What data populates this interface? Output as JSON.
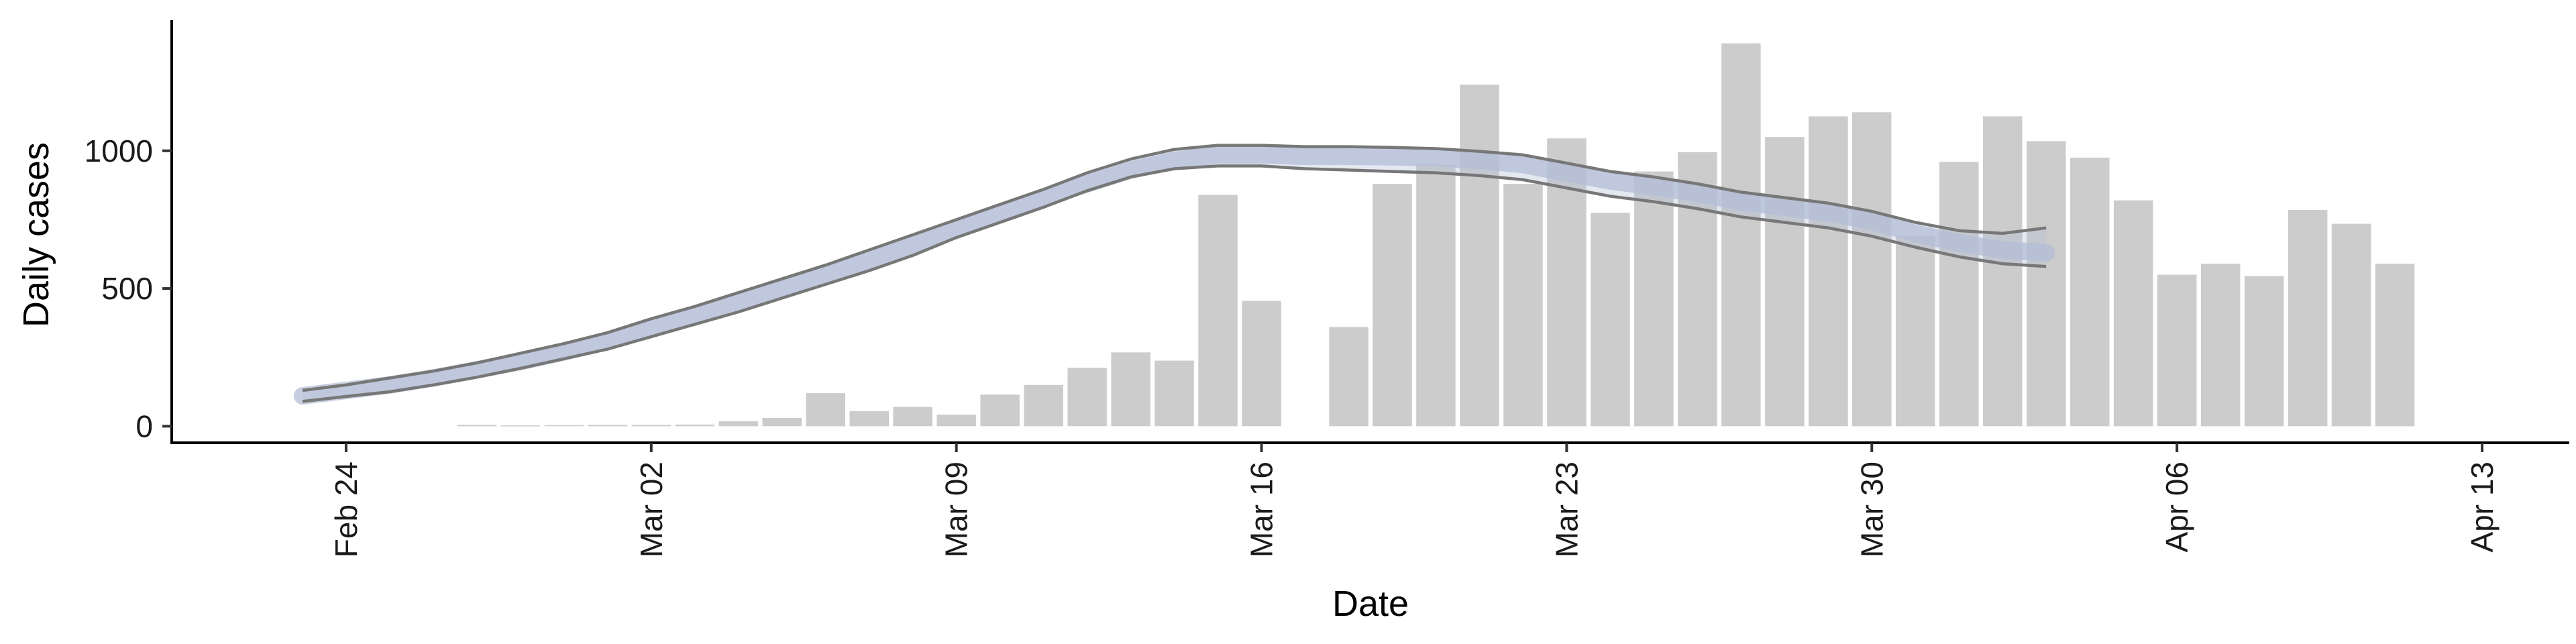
{
  "chart_data": {
    "type": "bar",
    "xlabel": "Date",
    "ylabel": "Daily cases",
    "x_axis_type": "date",
    "xlim": [
      "2020-02-20",
      "2020-04-15"
    ],
    "ylim": [
      -60,
      1450
    ],
    "x_ticks": [
      {
        "date": "2020-02-24",
        "label": "Feb 24"
      },
      {
        "date": "2020-03-02",
        "label": "Mar 02"
      },
      {
        "date": "2020-03-09",
        "label": "Mar 09"
      },
      {
        "date": "2020-03-16",
        "label": "Mar 16"
      },
      {
        "date": "2020-03-23",
        "label": "Mar 23"
      },
      {
        "date": "2020-03-30",
        "label": "Mar 30"
      },
      {
        "date": "2020-04-06",
        "label": "Apr 06"
      },
      {
        "date": "2020-04-13",
        "label": "Apr 13"
      }
    ],
    "y_ticks": [
      0,
      500,
      1000
    ],
    "grid": false,
    "bar_color": "#cccccc",
    "band_color": "#b3bdd6",
    "line_color": "#777777",
    "series": [
      {
        "type": "bar",
        "dates": [
          "2020-02-27",
          "2020-02-28",
          "2020-02-29",
          "2020-03-01",
          "2020-03-02",
          "2020-03-03",
          "2020-03-04",
          "2020-03-05",
          "2020-03-06",
          "2020-03-07",
          "2020-03-08",
          "2020-03-09",
          "2020-03-10",
          "2020-03-11",
          "2020-03-12",
          "2020-03-13",
          "2020-03-14",
          "2020-03-15",
          "2020-03-16",
          "2020-03-18",
          "2020-03-19",
          "2020-03-20",
          "2020-03-21",
          "2020-03-22",
          "2020-03-23",
          "2020-03-24",
          "2020-03-25",
          "2020-03-26",
          "2020-03-27",
          "2020-03-28",
          "2020-03-29",
          "2020-03-30",
          "2020-03-31",
          "2020-04-01",
          "2020-04-02",
          "2020-04-03",
          "2020-04-04",
          "2020-04-05",
          "2020-04-06",
          "2020-04-07",
          "2020-04-08",
          "2020-04-09",
          "2020-04-10",
          "2020-04-11",
          "2020-04-12"
        ],
        "values": [
          5,
          3,
          4,
          5,
          5,
          6,
          18,
          30,
          120,
          55,
          70,
          42,
          115,
          150,
          212,
          268,
          238,
          840,
          455,
          360,
          880,
          950,
          1240,
          880,
          1045,
          775,
          925,
          995,
          1390,
          1050,
          1125,
          1140,
          690,
          960,
          1125,
          1035,
          975,
          820,
          550,
          590,
          545,
          785,
          735,
          590,
          null
        ]
      },
      {
        "type": "line-band",
        "dates": [
          "2020-02-23",
          "2020-02-24",
          "2020-02-25",
          "2020-02-26",
          "2020-02-27",
          "2020-02-28",
          "2020-02-29",
          "2020-03-01",
          "2020-03-02",
          "2020-03-03",
          "2020-03-04",
          "2020-03-05",
          "2020-03-06",
          "2020-03-07",
          "2020-03-08",
          "2020-03-09",
          "2020-03-10",
          "2020-03-11",
          "2020-03-12",
          "2020-03-13",
          "2020-03-14",
          "2020-03-15",
          "2020-03-16",
          "2020-03-17",
          "2020-03-18",
          "2020-03-19",
          "2020-03-20",
          "2020-03-21",
          "2020-03-22",
          "2020-03-23",
          "2020-03-24",
          "2020-03-25",
          "2020-03-26",
          "2020-03-27",
          "2020-03-28",
          "2020-03-29",
          "2020-03-30",
          "2020-03-31",
          "2020-04-01",
          "2020-04-02",
          "2020-04-03"
        ],
        "mid": [
          110,
          130,
          150,
          175,
          205,
          235,
          270,
          310,
          355,
          400,
          450,
          500,
          550,
          600,
          655,
          715,
          770,
          830,
          880,
          930,
          965,
          985,
          985,
          980,
          980,
          978,
          975,
          965,
          950,
          920,
          890,
          870,
          845,
          815,
          795,
          775,
          745,
          700,
          665,
          640,
          630
        ],
        "lower": [
          90,
          108,
          125,
          150,
          178,
          210,
          245,
          280,
          325,
          370,
          415,
          465,
          515,
          565,
          620,
          685,
          740,
          795,
          855,
          905,
          935,
          945,
          945,
          935,
          930,
          925,
          920,
          910,
          895,
          865,
          835,
          815,
          790,
          760,
          740,
          720,
          690,
          650,
          615,
          590,
          580
        ],
        "upper": [
          130,
          150,
          175,
          200,
          230,
          265,
          300,
          340,
          390,
          435,
          485,
          535,
          585,
          640,
          695,
          750,
          805,
          860,
          920,
          970,
          1005,
          1020,
          1020,
          1015,
          1015,
          1012,
          1008,
          998,
          985,
          955,
          925,
          905,
          880,
          850,
          830,
          810,
          780,
          740,
          710,
          700,
          720
        ]
      }
    ]
  }
}
